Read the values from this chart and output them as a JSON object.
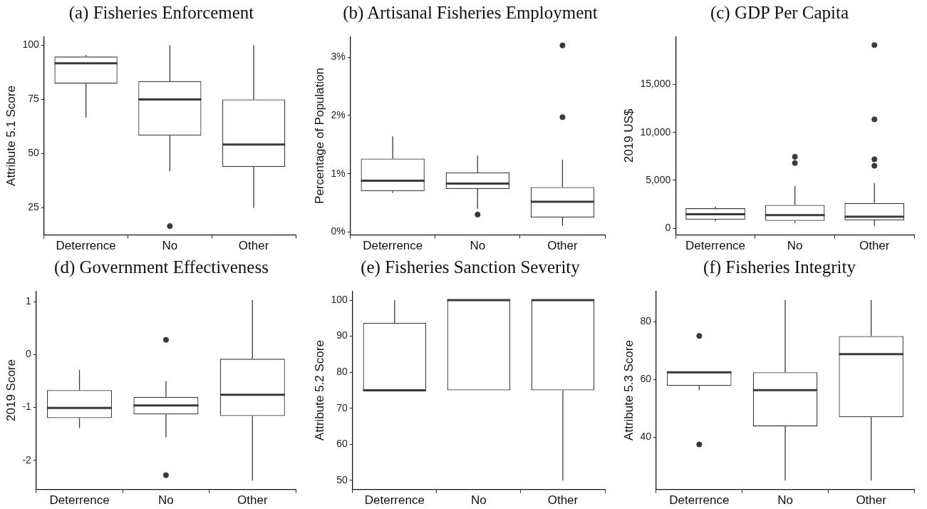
{
  "chart_data": [
    {
      "type": "box",
      "title": "(a) Fisheries Enforcement",
      "ylabel": "Attribute 5.1 Score",
      "categories": [
        "Deterrence",
        "No",
        "Other"
      ],
      "boxes": [
        {
          "low": 66.6,
          "q1": 82.3,
          "median": 91.7,
          "q3": 94.8,
          "high": 95.6
        },
        {
          "low": 41.9,
          "q1": 58.4,
          "median": 75,
          "q3": 83.4,
          "high": 100,
          "outliers": [
            16.6
          ]
        },
        {
          "low": 25,
          "q1": 43.9,
          "median": 54.2,
          "q3": 75,
          "high": 100
        }
      ],
      "ylim": [
        12.5,
        104
      ],
      "yticks": [
        25,
        50,
        75,
        100
      ]
    },
    {
      "type": "box",
      "title": "(b) Artisanal Fisheries Employment",
      "ylabel": "Percentage of Population",
      "categories": [
        "Deterrence",
        "No",
        "Other"
      ],
      "boxes": [
        {
          "low": 0.67,
          "q1": 0.7,
          "median": 0.88,
          "q3": 1.26,
          "high": 1.64
        },
        {
          "low": 0.4,
          "q1": 0.74,
          "median": 0.83,
          "q3": 1.02,
          "high": 1.31,
          "outliers": [
            0.3
          ]
        },
        {
          "low": 0.11,
          "q1": 0.25,
          "median": 0.52,
          "q3": 0.77,
          "high": 1.24,
          "outliers": [
            1.97,
            3.2
          ]
        }
      ],
      "ylim": [
        -0.05,
        3.35
      ],
      "yticks": [
        {
          "value": 0,
          "label": "0%"
        },
        {
          "value": 1,
          "label": "1%"
        },
        {
          "value": 2,
          "label": "2%"
        },
        {
          "value": 3,
          "label": "3%"
        }
      ]
    },
    {
      "type": "box",
      "title": "(c) GDP Per Capita",
      "ylabel": "2019 US$",
      "categories": [
        "Deterrence",
        "No",
        "Other"
      ],
      "boxes": [
        {
          "low": 730,
          "q1": 910,
          "median": 1460,
          "q3": 2090,
          "high": 2240
        },
        {
          "low": 550,
          "q1": 780,
          "median": 1380,
          "q3": 2430,
          "high": 4380,
          "outliers": [
            6810,
            7460
          ]
        },
        {
          "low": 260,
          "q1": 830,
          "median": 1200,
          "q3": 2630,
          "high": 4720,
          "outliers": [
            6520,
            7200,
            11370,
            19120
          ]
        }
      ],
      "ylim": [
        -700,
        20000
      ],
      "yticks": [
        0,
        {
          "value": 5000,
          "label": "5,000"
        },
        {
          "value": 10000,
          "label": "10,000"
        },
        {
          "value": 15000,
          "label": "15,000"
        }
      ]
    },
    {
      "type": "box",
      "title": "(d) Government Effectiveness",
      "ylabel": "2019 Score",
      "categories": [
        "Deterrence",
        "No",
        "Other"
      ],
      "boxes": [
        {
          "low": -1.39,
          "q1": -1.2,
          "median": -1.01,
          "q3": -0.67,
          "high": -0.29
        },
        {
          "low": -1.56,
          "q1": -1.13,
          "median": -0.96,
          "q3": -0.8,
          "high": -0.5,
          "outliers": [
            -2.28,
            0.28
          ]
        },
        {
          "low": -2.38,
          "q1": -1.16,
          "median": -0.76,
          "q3": -0.08,
          "high": 1.03
        }
      ],
      "ylim": [
        -2.55,
        1.2
      ],
      "yticks": [
        -2,
        -1,
        0,
        1
      ]
    },
    {
      "type": "box",
      "title": "(e) Fisheries Sanction Severity",
      "ylabel": "Attribute 5.2 Score",
      "categories": [
        "Deterrence",
        "No",
        "Other"
      ],
      "boxes": [
        {
          "low": 75,
          "q1": 75,
          "median": 75,
          "q3": 93.7,
          "high": 100
        },
        {
          "low": 75,
          "q1": 75,
          "median": 100,
          "q3": 100,
          "high": 100
        },
        {
          "low": 50,
          "q1": 75,
          "median": 100,
          "q3": 100,
          "high": 100
        }
      ],
      "ylim": [
        47.5,
        102.5
      ],
      "yticks": [
        50,
        60,
        70,
        80,
        90,
        100
      ]
    },
    {
      "type": "box",
      "title": "(f) Fisheries Integrity",
      "ylabel": "Attribute 5.3 Score",
      "categories": [
        "Deterrence",
        "No",
        "Other"
      ],
      "boxes": [
        {
          "low": 56.3,
          "q1": 57.8,
          "median": 62.5,
          "q3": 62.5,
          "high": 62.5,
          "outliers": [
            37.5,
            75.1
          ]
        },
        {
          "low": 25,
          "q1": 43.8,
          "median": 56.3,
          "q3": 62.5,
          "high": 87.5
        },
        {
          "low": 25,
          "q1": 46.9,
          "median": 68.8,
          "q3": 75,
          "high": 87.5
        }
      ],
      "ylim": [
        21.9,
        90.6
      ],
      "yticks": [
        40,
        60,
        80
      ]
    }
  ]
}
